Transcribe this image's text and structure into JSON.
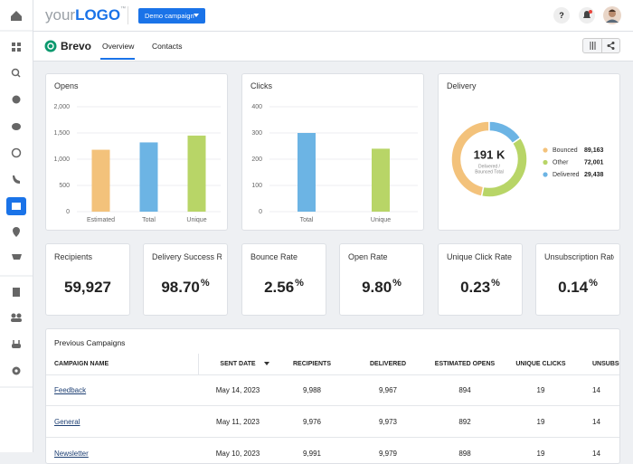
{
  "header": {
    "logo_prefix": "your",
    "logo_main": "LOGO",
    "logo_mark": "™",
    "campaign_button": "Demo campaign",
    "help": "?"
  },
  "nav": {
    "brand": "Brevo",
    "tabs": [
      "Overview",
      "Contacts"
    ]
  },
  "chart_data": [
    {
      "type": "bar",
      "title": "Opens",
      "categories": [
        "Estimated",
        "Total",
        "Unique"
      ],
      "values": [
        1180,
        1320,
        1450
      ],
      "colors": [
        "#f3c27b",
        "#6cb4e4",
        "#b8d567"
      ],
      "ylim": [
        0,
        2000
      ],
      "yticks": [
        0,
        500,
        {
          "value": 1000,
          "label": "1,000"
        },
        {
          "value": 1500,
          "label": "1,500"
        },
        {
          "value": 2000,
          "label": "2,000"
        }
      ],
      "grid": true
    },
    {
      "type": "bar",
      "title": "Clicks",
      "categories": [
        "Total",
        "Unique"
      ],
      "values": [
        300,
        240
      ],
      "colors": [
        "#6cb4e4",
        "#b8d567"
      ],
      "ylim": [
        0,
        400
      ],
      "yticks": [
        0,
        100,
        200,
        300,
        400
      ],
      "grid": true
    },
    {
      "type": "donut",
      "title": "Delivery",
      "center_label": "191 K",
      "center_sublabel": [
        "Delivered /",
        "Bounced Total"
      ],
      "categories": [
        "Bounced",
        "Other",
        "Delivered"
      ],
      "values": [
        89163,
        72001,
        29438
      ],
      "value_labels": [
        "89,163",
        "72,001",
        "29,438"
      ],
      "colors": [
        "#f3c27b",
        "#b8d567",
        "#6cb4e4"
      ],
      "legend": "right"
    }
  ],
  "kpis": [
    {
      "label": "Recipients",
      "value": "59,927"
    },
    {
      "label": "Delivery Success R...",
      "value": "98.70",
      "unit": "%"
    },
    {
      "label": "Bounce Rate",
      "value": "2.56",
      "unit": "%"
    },
    {
      "label": "Open Rate",
      "value": "9.80",
      "unit": "%"
    },
    {
      "label": "Unique Click Rate",
      "value": "0.23",
      "unit": "%"
    },
    {
      "label": "Unsubscription Rate",
      "value": "0.14",
      "unit": "%"
    }
  ],
  "table": {
    "title": "Previous Campaigns",
    "columns": [
      "CAMPAIGN NAME",
      "SENT DATE",
      "RECIPIENTS",
      "DELIVERED",
      "ESTIMATED OPENS",
      "UNIQUE CLICKS",
      "UNSUBSCRIPTIONS"
    ],
    "rows": [
      [
        "Feedback",
        "May 14, 2023",
        "9,988",
        "9,967",
        "894",
        "19",
        "14"
      ],
      [
        "General",
        "May 11, 2023",
        "9,976",
        "9,973",
        "892",
        "19",
        "14"
      ],
      [
        "Newsletter",
        "May 10, 2023",
        "9,991",
        "9,979",
        "898",
        "19",
        "14"
      ]
    ]
  }
}
